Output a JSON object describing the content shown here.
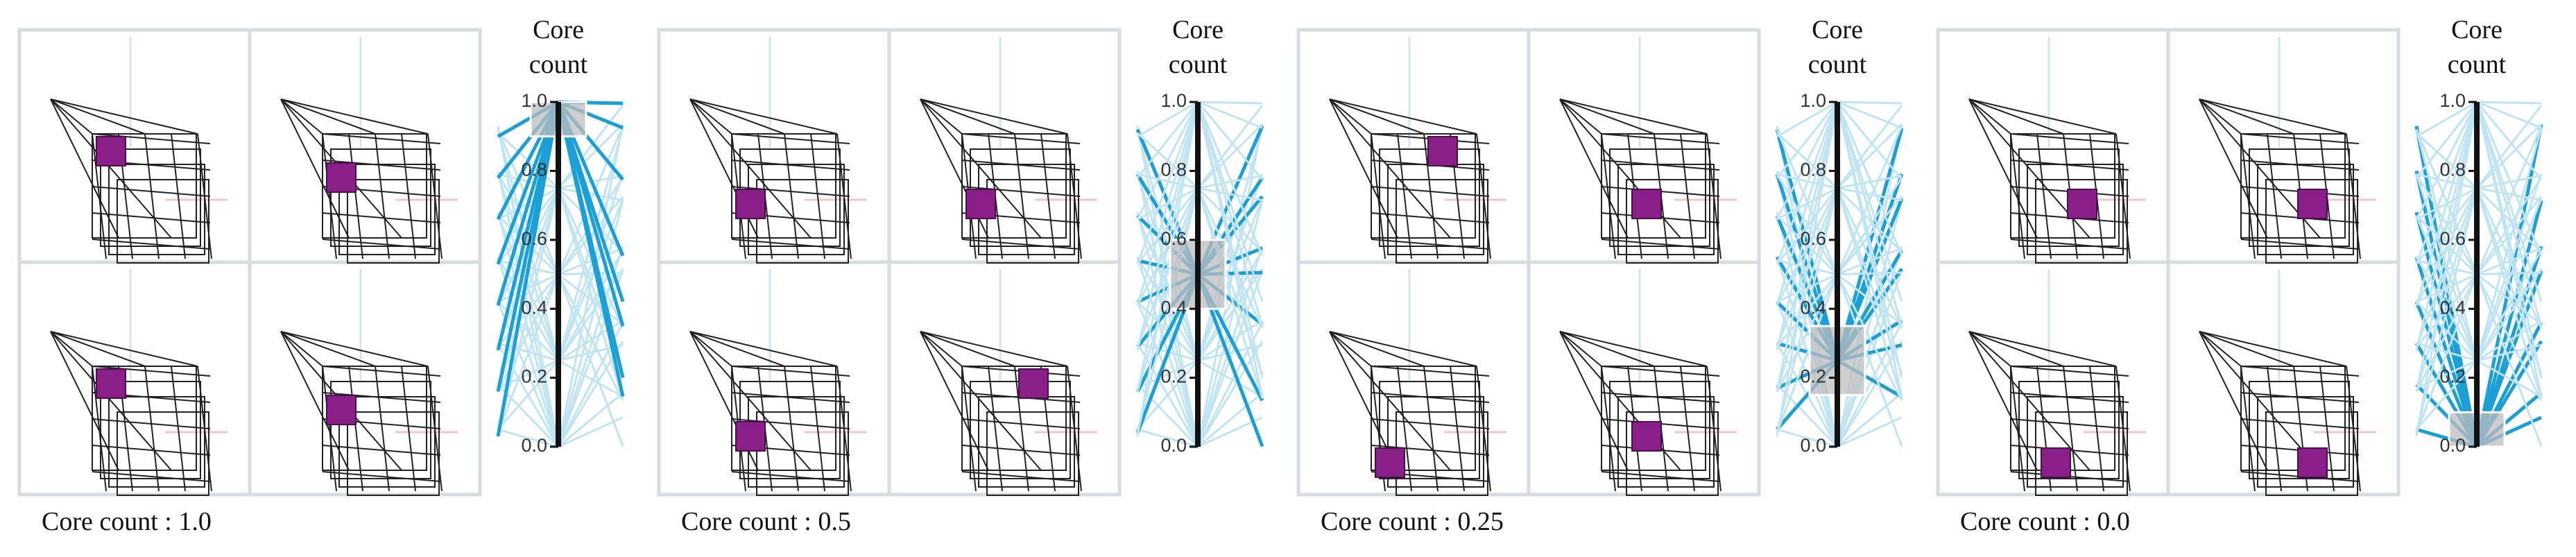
{
  "panels": [
    {
      "axis_title": "Core count",
      "caption": "Core count : 1.0",
      "selection": 1.0,
      "ticks": [
        {
          "value": 0,
          "label": "0.0"
        },
        {
          "value": 0.2,
          "label": "0.2"
        },
        {
          "value": 0.4,
          "label": "0.4"
        },
        {
          "value": 0.6,
          "label": "0.6"
        },
        {
          "value": 0.8,
          "label": "0.8"
        },
        {
          "value": 1,
          "label": "1.0"
        }
      ]
    },
    {
      "axis_title": "Core count",
      "caption": "Core count : 0.5",
      "selection": 0.5,
      "ticks": [
        {
          "value": 0,
          "label": "0.0"
        },
        {
          "value": 0.2,
          "label": "0.2"
        },
        {
          "value": 0.4,
          "label": "0.4"
        },
        {
          "value": 0.6,
          "label": "0.6"
        },
        {
          "value": 0.8,
          "label": "0.8"
        },
        {
          "value": 1,
          "label": "1.0"
        }
      ]
    },
    {
      "axis_title": "Core count",
      "caption": "Core count : 0.25",
      "selection": 0.25,
      "ticks": [
        {
          "value": 0,
          "label": "0.0"
        },
        {
          "value": 0.2,
          "label": "0.2"
        },
        {
          "value": 0.4,
          "label": "0.4"
        },
        {
          "value": 0.6,
          "label": "0.6"
        },
        {
          "value": 0.8,
          "label": "0.8"
        },
        {
          "value": 1,
          "label": "1.0"
        }
      ]
    },
    {
      "axis_title": "Core count",
      "caption": "Core count : 0.0",
      "selection": 0.0,
      "ticks": [
        {
          "value": 0,
          "label": "0.0"
        },
        {
          "value": 0.2,
          "label": "0.2"
        },
        {
          "value": 0.4,
          "label": "0.4"
        },
        {
          "value": 0.6,
          "label": "0.6"
        },
        {
          "value": 0.8,
          "label": "0.8"
        },
        {
          "value": 1,
          "label": "1.0"
        }
      ]
    }
  ]
}
